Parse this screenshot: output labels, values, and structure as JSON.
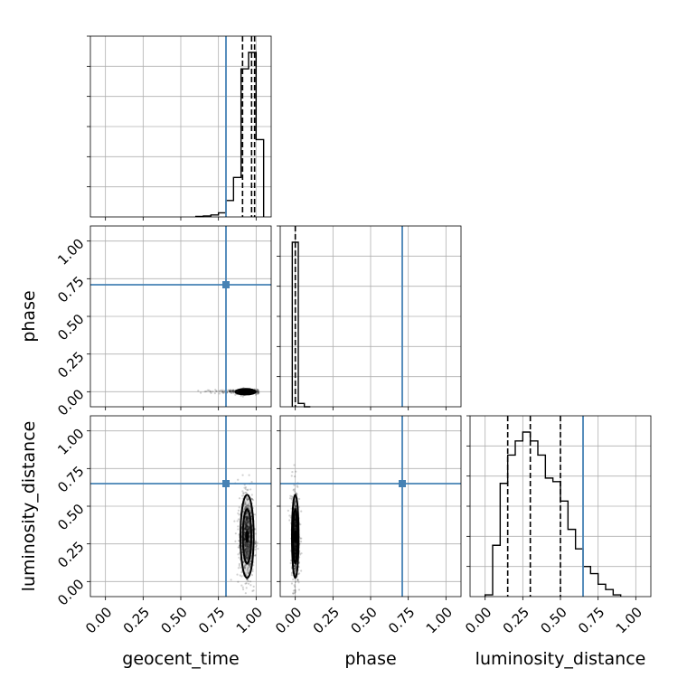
{
  "chart_data": {
    "type": "corner",
    "parameters": [
      "geocent_time",
      "phase",
      "luminosity_distance"
    ],
    "axis_range": [
      -0.1,
      1.1
    ],
    "tick_labels": [
      "0.00",
      "0.25",
      "0.50",
      "0.75",
      "1.00"
    ],
    "truths": {
      "geocent_time": 0.8,
      "phase": 0.71,
      "luminosity_distance": 0.65
    },
    "truth_color": "#4682b4",
    "grid": true,
    "diagonal_histograms": [
      {
        "parameter": "geocent_time",
        "bin_edges": [
          0.6,
          0.65,
          0.7,
          0.75,
          0.8,
          0.85,
          0.9,
          0.95,
          1.0,
          1.05
        ],
        "counts": [
          0.003,
          0.006,
          0.012,
          0.025,
          0.1,
          0.24,
          0.9,
          1.0,
          0.47
        ],
        "quantiles": [
          0.91,
          0.97,
          0.99
        ]
      },
      {
        "parameter": "phase",
        "bin_edges": [
          -0.02,
          0.02,
          0.06,
          0.1
        ],
        "counts": [
          1.0,
          0.02,
          0.0
        ],
        "quantiles": [
          0.0
        ]
      },
      {
        "parameter": "luminosity_distance",
        "bin_edges": [
          0.0,
          0.05,
          0.1,
          0.15,
          0.2,
          0.25,
          0.3,
          0.35,
          0.4,
          0.45,
          0.5,
          0.55,
          0.6,
          0.65,
          0.7,
          0.75,
          0.8,
          0.85,
          0.9
        ],
        "counts": [
          0.01,
          0.29,
          0.64,
          0.8,
          0.88,
          0.93,
          0.88,
          0.8,
          0.67,
          0.65,
          0.54,
          0.38,
          0.27,
          0.17,
          0.13,
          0.07,
          0.04,
          0.01
        ],
        "quantiles": [
          0.15,
          0.3,
          0.5
        ]
      }
    ],
    "scatter_panels": [
      {
        "x": "geocent_time",
        "y": "phase",
        "center": [
          0.93,
          0.0
        ],
        "spread": [
          0.03,
          0.008
        ]
      },
      {
        "x": "geocent_time",
        "y": "luminosity_distance",
        "center": [
          0.94,
          0.3
        ],
        "spread": [
          0.02,
          0.12
        ]
      },
      {
        "x": "phase",
        "y": "luminosity_distance",
        "center": [
          0.0,
          0.3
        ],
        "spread": [
          0.01,
          0.12
        ]
      }
    ]
  }
}
